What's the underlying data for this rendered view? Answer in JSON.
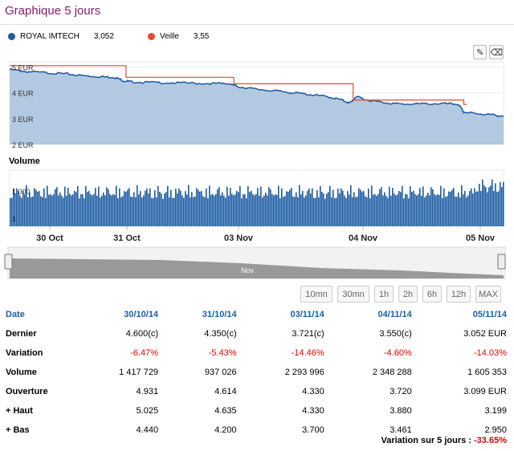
{
  "title": "Graphique 5 jours",
  "legend": {
    "series1": {
      "name": "ROYAL IMTECH",
      "value": "3,052",
      "color": "#1b5aa3"
    },
    "series2": {
      "name": "Veille",
      "value": "3,55",
      "color": "#e64a2e"
    }
  },
  "tools": {
    "pencil_icon": "pencil-icon",
    "eraser_icon": "eraser-icon"
  },
  "chart_data": {
    "type": "line",
    "price_axis": {
      "ticks": [
        "5 EUR",
        "4 EUR",
        "3 EUR",
        "2 EUR"
      ],
      "ylim": [
        2,
        5.2
      ]
    },
    "volume_title": "Volume",
    "volume_axis": {
      "ticks": [
        "1 000",
        "1"
      ]
    },
    "x_labels": [
      "30 Oct",
      "31 Oct",
      "03 Nov",
      "04 Nov",
      "05 Nov"
    ],
    "navigator_label": "Nov",
    "series": [
      {
        "name": "ROYAL IMTECH",
        "points": [
          [
            0,
            4.9
          ],
          [
            0.3,
            4.82
          ],
          [
            0.7,
            4.77
          ],
          [
            1,
            4.73
          ],
          [
            1.3,
            4.66
          ],
          [
            1.6,
            4.62
          ],
          [
            1.85,
            4.6
          ],
          [
            2,
            4.47
          ],
          [
            2.15,
            4.42
          ],
          [
            2.5,
            4.4
          ],
          [
            3,
            4.38
          ],
          [
            3.5,
            4.36
          ],
          [
            3.9,
            4.35
          ],
          [
            4,
            4.25
          ],
          [
            4.3,
            4.15
          ],
          [
            4.7,
            4.07
          ],
          [
            5,
            4.0
          ],
          [
            5.3,
            3.93
          ],
          [
            5.6,
            3.85
          ],
          [
            5.85,
            3.72
          ],
          [
            6,
            3.6
          ],
          [
            6.1,
            3.85
          ],
          [
            6.3,
            3.72
          ],
          [
            6.6,
            3.62
          ],
          [
            6.9,
            3.56
          ],
          [
            7.2,
            3.57
          ],
          [
            7.6,
            3.58
          ],
          [
            7.9,
            3.56
          ],
          [
            8.0,
            3.25
          ],
          [
            8.2,
            3.2
          ],
          [
            8.5,
            3.15
          ],
          [
            8.7,
            3.09
          ]
        ]
      },
      {
        "name": "Veille",
        "steps": [
          [
            0,
            5.05
          ],
          [
            2.05,
            5.05
          ],
          [
            2.05,
            4.6
          ],
          [
            3.95,
            4.6
          ],
          [
            3.95,
            4.35
          ],
          [
            6.05,
            4.35
          ],
          [
            6.05,
            3.72
          ],
          [
            8.0,
            3.72
          ],
          [
            8.0,
            3.55
          ],
          [
            8.05,
            3.55
          ]
        ]
      }
    ]
  },
  "range_buttons": [
    "10mn",
    "30mn",
    "1h",
    "2h",
    "6h",
    "12h",
    "MAX"
  ],
  "table": {
    "header": [
      "Date",
      "30/10/14",
      "31/10/14",
      "03/11/14",
      "04/11/14",
      "05/11/14"
    ],
    "rows": [
      {
        "label": "Dernier",
        "values": [
          "4.600(c)",
          "4.350(c)",
          "3.721(c)",
          "3.550(c)",
          "3.052 EUR"
        ],
        "negative": false
      },
      {
        "label": "Variation",
        "values": [
          "-6.47%",
          "-5.43%",
          "-14.46%",
          "-4.60%",
          "-14.03%"
        ],
        "negative": true
      },
      {
        "label": "Volume",
        "values": [
          "1 417 729",
          "937 026",
          "2 293 996",
          "2 348 288",
          "1 605 353"
        ],
        "negative": false
      },
      {
        "label": "Ouverture",
        "values": [
          "4.931",
          "4.614",
          "4.330",
          "3.720",
          "3.099 EUR"
        ],
        "negative": false
      },
      {
        "label": "+ Haut",
        "values": [
          "5.025",
          "4.635",
          "4.330",
          "3.880",
          "3.199"
        ],
        "negative": false
      },
      {
        "label": "+ Bas",
        "values": [
          "4.440",
          "4.200",
          "3.700",
          "3.461",
          "2.950"
        ],
        "negative": false
      }
    ]
  },
  "footer": {
    "label": "Variation sur 5 jours :",
    "value": "-33.65%"
  }
}
